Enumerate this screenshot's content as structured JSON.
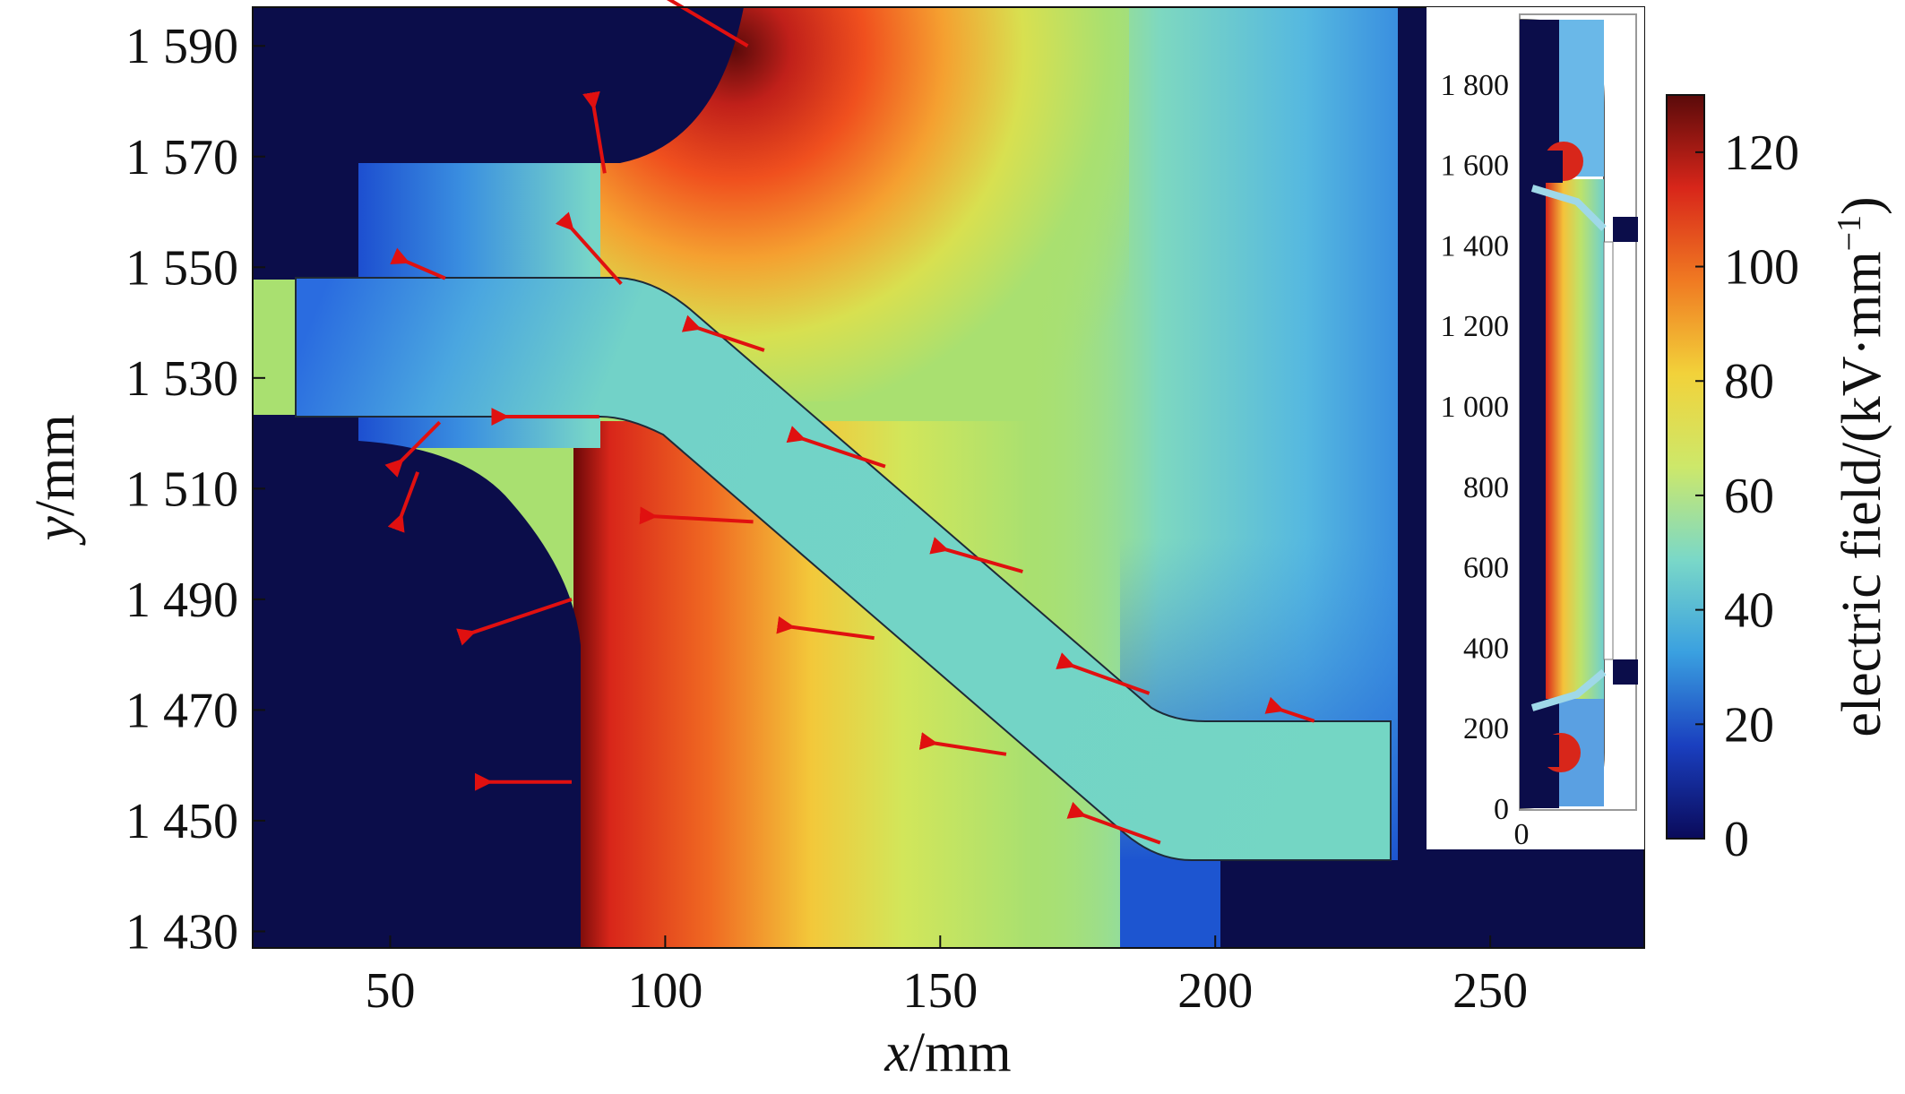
{
  "chart_data": {
    "type": "heatmap",
    "title": "",
    "x_axis": {
      "ticks": [
        50,
        100,
        150,
        200,
        250
      ],
      "tick_labels": [
        "50",
        "100",
        "150",
        "200",
        "250"
      ],
      "range": [
        25,
        278
      ],
      "label_var": "x",
      "label_unit": "/mm"
    },
    "y_axis": {
      "ticks": [
        1430,
        1450,
        1470,
        1490,
        1510,
        1530,
        1550,
        1570,
        1590
      ],
      "tick_labels": [
        "1 430",
        "1 450",
        "1 470",
        "1 490",
        "1 510",
        "1 530",
        "1 550",
        "1 570",
        "1 590"
      ],
      "range": [
        1427,
        1597
      ],
      "label_var": "y",
      "label_unit": "/mm"
    },
    "colorbar": {
      "label": "electric field/(kV·mm",
      "label_exponent": "−1",
      "label_close": ")",
      "range": [
        0,
        130
      ],
      "ticks": [
        0,
        20,
        40,
        60,
        80,
        100,
        120
      ],
      "tick_labels": [
        "0",
        "20",
        "40",
        "60",
        "80",
        "100",
        "120"
      ],
      "colormap": "jet",
      "colors": [
        "#0a0a5a",
        "#1a3fbf",
        "#3aa0e0",
        "#7ad8c8",
        "#cde86a",
        "#f2d23a",
        "#f07a22",
        "#d8261a",
        "#5a0a0a"
      ]
    },
    "inset": {
      "y_ticks": [
        0,
        200,
        400,
        600,
        800,
        1000,
        1200,
        1400,
        1600,
        1800
      ],
      "y_tick_labels": [
        "0",
        "200",
        "400",
        "600",
        "800",
        "1 000",
        "1 200",
        "1 400",
        "1 600",
        "1 800"
      ],
      "x_tick_labels": [
        "0"
      ],
      "y_range": [
        0,
        1960
      ]
    },
    "field_arrows": [
      {
        "x": 115,
        "y": 1590,
        "dx": -17,
        "dy": 10
      },
      {
        "x": 89,
        "y": 1567,
        "dx": -2,
        "dy": 12
      },
      {
        "x": 92,
        "y": 1547,
        "dx": -9,
        "dy": 10
      },
      {
        "x": 60,
        "y": 1548,
        "dx": -7,
        "dy": 3
      },
      {
        "x": 118,
        "y": 1535,
        "dx": -12,
        "dy": 4
      },
      {
        "x": 88,
        "y": 1523,
        "dx": -17,
        "dy": 0
      },
      {
        "x": 59,
        "y": 1522,
        "dx": -7,
        "dy": -7
      },
      {
        "x": 55,
        "y": 1513,
        "dx": -3,
        "dy": -8
      },
      {
        "x": 140,
        "y": 1514,
        "dx": -15,
        "dy": 5
      },
      {
        "x": 116,
        "y": 1504,
        "dx": -18,
        "dy": 1
      },
      {
        "x": 165,
        "y": 1495,
        "dx": -14,
        "dy": 4
      },
      {
        "x": 83,
        "y": 1490,
        "dx": -18,
        "dy": -6
      },
      {
        "x": 138,
        "y": 1483,
        "dx": -15,
        "dy": 2
      },
      {
        "x": 188,
        "y": 1473,
        "dx": -14,
        "dy": 5
      },
      {
        "x": 162,
        "y": 1462,
        "dx": -13,
        "dy": 2
      },
      {
        "x": 83,
        "y": 1457,
        "dx": -15,
        "dy": 0
      },
      {
        "x": 190,
        "y": 1446,
        "dx": -14,
        "dy": 5
      },
      {
        "x": 218,
        "y": 1468,
        "dx": -6,
        "dy": 2
      }
    ]
  },
  "colors": {
    "field_arrow": "#e01010",
    "conductor": "#0b0d4a"
  }
}
